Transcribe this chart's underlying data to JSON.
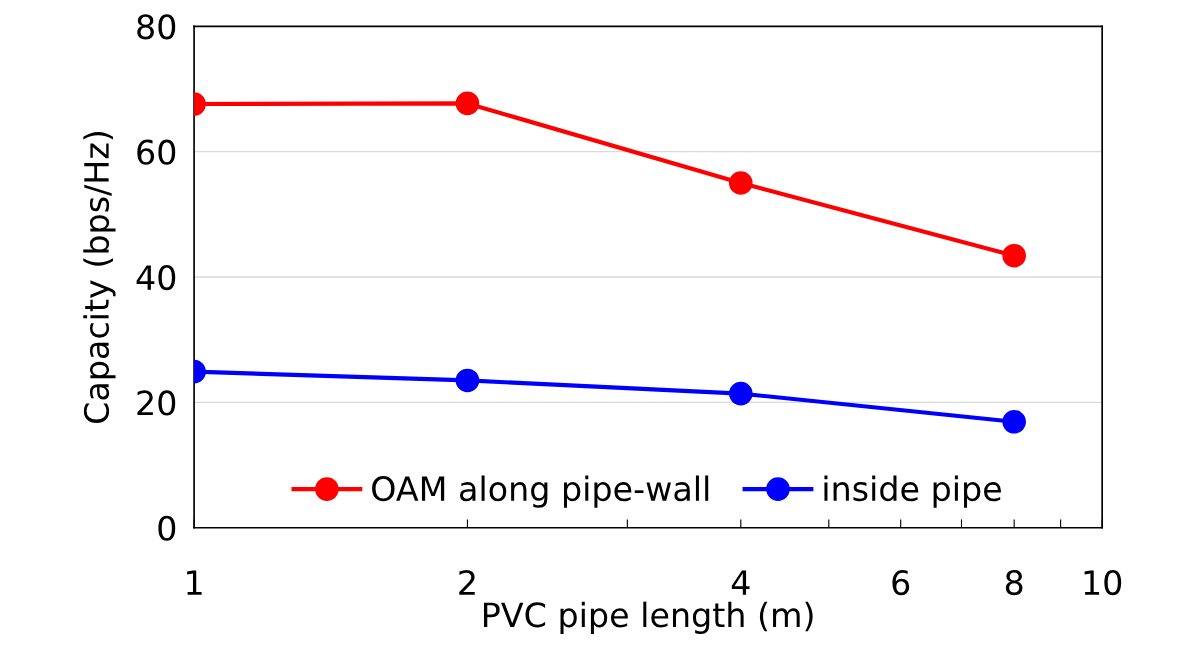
{
  "chart_data": {
    "type": "line",
    "xlabel": "PVC pipe length (m)",
    "ylabel": "Capacity (bps/Hz)",
    "x": [
      1,
      2,
      4,
      8
    ],
    "series": [
      {
        "name": "OAM along pipe-wall",
        "color": "#ff0000",
        "values": [
          67.6,
          67.7,
          55.0,
          43.4
        ]
      },
      {
        "name": "inside pipe",
        "color": "#0000ff",
        "values": [
          24.9,
          23.5,
          21.4,
          16.9
        ]
      }
    ],
    "log": "x",
    "xlim": [
      1,
      10
    ],
    "xticks": [
      1,
      2,
      {
        "value": 3,
        "label": null
      },
      4,
      {
        "value": 5,
        "label": null
      },
      6,
      {
        "value": 7,
        "label": null
      },
      8,
      {
        "value": 9,
        "label": null
      },
      10
    ],
    "ylim": [
      0,
      80
    ],
    "yticks": [
      0,
      20,
      40,
      60,
      80
    ],
    "grid": "y",
    "legend": "bottom",
    "marker": "circle",
    "line_style": "solid"
  }
}
